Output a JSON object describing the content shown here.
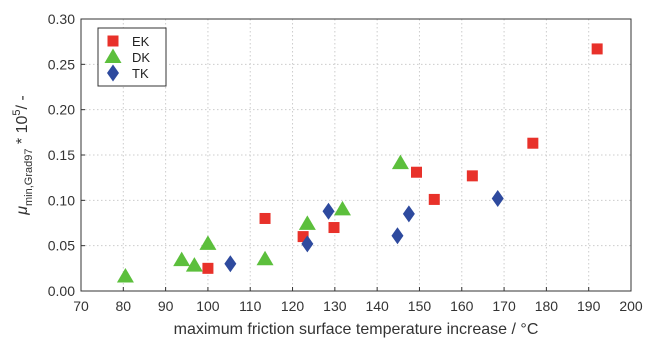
{
  "chart_data": {
    "type": "scatter",
    "title": "",
    "xlabel": "maximum friction surface temperature increase / °C",
    "ylabel": {
      "symbol": "μ",
      "subscript": "min,Grad97",
      "factor": " * 10",
      "exponent": "5",
      "unit": "/ -"
    },
    "xlim": [
      70,
      200
    ],
    "ylim": [
      0,
      0.3
    ],
    "xticks": [
      "70",
      "80",
      "90",
      "100",
      "110",
      "120",
      "130",
      "140",
      "150",
      "160",
      "170",
      "180",
      "190",
      "200"
    ],
    "yticks": [
      "0.00",
      "0.05",
      "0.10",
      "0.15",
      "0.20",
      "0.25",
      "0.30"
    ],
    "grid": true,
    "legend_position": "top-left",
    "series": [
      {
        "name": "EK",
        "marker": "square",
        "color": "#e8312a",
        "points": [
          [
            100.0,
            0.025
          ],
          [
            113.5,
            0.08
          ],
          [
            122.5,
            0.06
          ],
          [
            129.8,
            0.07
          ],
          [
            149.3,
            0.131
          ],
          [
            153.5,
            0.101
          ],
          [
            162.5,
            0.127
          ],
          [
            176.8,
            0.163
          ],
          [
            192.0,
            0.267
          ]
        ]
      },
      {
        "name": "DK",
        "marker": "triangle",
        "color": "#5cbf3c",
        "points": [
          [
            80.5,
            0.016
          ],
          [
            93.8,
            0.034
          ],
          [
            96.8,
            0.028
          ],
          [
            100.0,
            0.052
          ],
          [
            113.5,
            0.035
          ],
          [
            123.5,
            0.074
          ],
          [
            131.8,
            0.09
          ],
          [
            145.5,
            0.141
          ]
        ]
      },
      {
        "name": "TK",
        "marker": "diamond",
        "color": "#2e4a9e",
        "points": [
          [
            105.3,
            0.03
          ],
          [
            123.5,
            0.052
          ],
          [
            128.5,
            0.088
          ],
          [
            144.8,
            0.061
          ],
          [
            147.5,
            0.085
          ],
          [
            168.5,
            0.102
          ]
        ]
      }
    ]
  }
}
